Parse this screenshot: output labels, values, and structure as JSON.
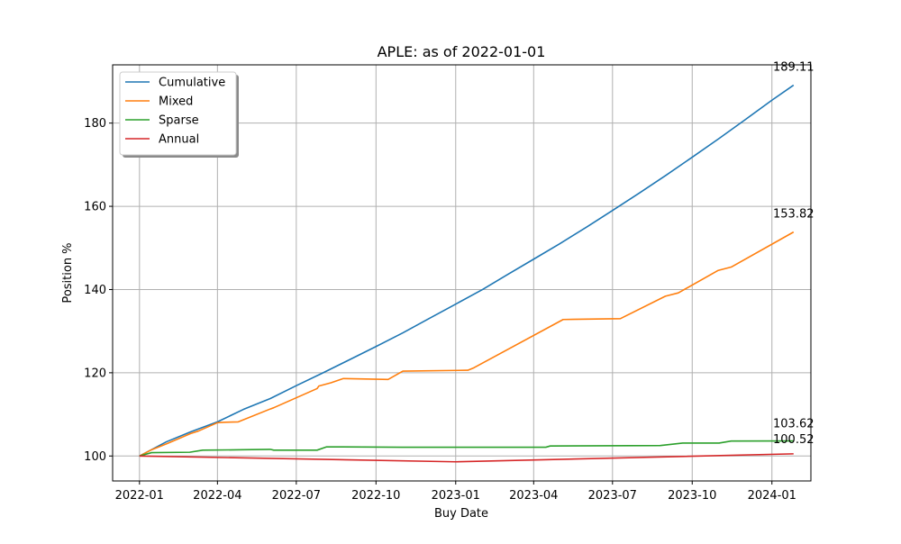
{
  "chart_data": {
    "type": "line",
    "title": "APLE: as of 2022-01-01",
    "xlabel": "Buy Date",
    "ylabel": "Position %",
    "x_type": "date",
    "xlim": [
      "2021-12-01",
      "2024-02-15"
    ],
    "ylim": [
      94,
      194
    ],
    "x_ticks": [
      "2022-01",
      "2022-04",
      "2022-07",
      "2022-10",
      "2023-01",
      "2023-04",
      "2023-07",
      "2023-10",
      "2024-01"
    ],
    "y_ticks": [
      100,
      120,
      140,
      160,
      180
    ],
    "grid": true,
    "legend_position": "top-left",
    "series": [
      {
        "name": "Cumulative",
        "color": "#1f77b4",
        "end_label": "189.11",
        "points": [
          [
            "2022-01-01",
            100
          ],
          [
            "2022-02-01",
            103.4
          ],
          [
            "2022-03-01",
            105.8
          ],
          [
            "2022-04-01",
            108.2
          ],
          [
            "2022-05-01",
            111.2
          ],
          [
            "2022-06-01",
            113.8
          ],
          [
            "2022-07-01",
            116.9
          ],
          [
            "2022-08-01",
            120
          ],
          [
            "2022-09-01",
            123.2
          ],
          [
            "2022-10-01",
            126.3
          ],
          [
            "2022-11-01",
            129.6
          ],
          [
            "2022-12-01",
            133
          ],
          [
            "2023-01-01",
            136.5
          ],
          [
            "2023-02-01",
            140
          ],
          [
            "2023-03-01",
            143.5
          ],
          [
            "2023-04-01",
            147.3
          ],
          [
            "2023-05-01",
            151
          ],
          [
            "2023-06-01",
            155
          ],
          [
            "2023-07-01",
            159
          ],
          [
            "2023-08-01",
            163.2
          ],
          [
            "2023-09-01",
            167.5
          ],
          [
            "2023-10-01",
            171.8
          ],
          [
            "2023-11-01",
            176.3
          ],
          [
            "2023-12-01",
            180.8
          ],
          [
            "2024-01-01",
            185.5
          ],
          [
            "2024-01-26",
            189.11
          ]
        ]
      },
      {
        "name": "Mixed",
        "color": "#ff7f0e",
        "end_label": "153.82",
        "points": [
          [
            "2022-01-01",
            100
          ],
          [
            "2022-01-15",
            101.5
          ],
          [
            "2022-02-01",
            102.9
          ],
          [
            "2022-03-01",
            105.4
          ],
          [
            "2022-03-10",
            106
          ],
          [
            "2022-04-01",
            108
          ],
          [
            "2022-04-10",
            108.1
          ],
          [
            "2022-04-25",
            108.2
          ],
          [
            "2022-06-01",
            111.3
          ],
          [
            "2022-06-05",
            111.6
          ],
          [
            "2022-07-25",
            116.2
          ],
          [
            "2022-07-27",
            116.8
          ],
          [
            "2022-08-10",
            117.6
          ],
          [
            "2022-08-24",
            118.6
          ],
          [
            "2022-10-15",
            118.4
          ],
          [
            "2022-11-01",
            120.4
          ],
          [
            "2023-01-15",
            120.6
          ],
          [
            "2023-01-22",
            121.2
          ],
          [
            "2023-05-05",
            132.8
          ],
          [
            "2023-07-10",
            133
          ],
          [
            "2023-08-31",
            138.4
          ],
          [
            "2023-09-15",
            139.2
          ],
          [
            "2023-10-31",
            144.6
          ],
          [
            "2023-11-15",
            145.4
          ],
          [
            "2024-01-26",
            153.82
          ]
        ]
      },
      {
        "name": "Sparse",
        "color": "#2ca02c",
        "end_label": "103.62",
        "points": [
          [
            "2022-01-01",
            100
          ],
          [
            "2022-01-15",
            100.8
          ],
          [
            "2022-02-28",
            100.9
          ],
          [
            "2022-03-15",
            101.4
          ],
          [
            "2022-05-01",
            101.5
          ],
          [
            "2022-06-01",
            101.6
          ],
          [
            "2022-06-05",
            101.4
          ],
          [
            "2022-07-25",
            101.4
          ],
          [
            "2022-08-05",
            102.2
          ],
          [
            "2022-10-31",
            102.1
          ],
          [
            "2023-01-01",
            102.1
          ],
          [
            "2023-04-15",
            102.1
          ],
          [
            "2023-04-20",
            102.4
          ],
          [
            "2023-08-25",
            102.5
          ],
          [
            "2023-09-20",
            103.1
          ],
          [
            "2023-11-01",
            103.1
          ],
          [
            "2023-11-15",
            103.6
          ],
          [
            "2024-01-26",
            103.62
          ]
        ]
      },
      {
        "name": "Annual",
        "color": "#d62728",
        "end_label": "100.52",
        "points": [
          [
            "2022-01-01",
            100
          ],
          [
            "2023-01-01",
            98.6
          ],
          [
            "2024-01-26",
            100.52
          ]
        ]
      }
    ]
  }
}
